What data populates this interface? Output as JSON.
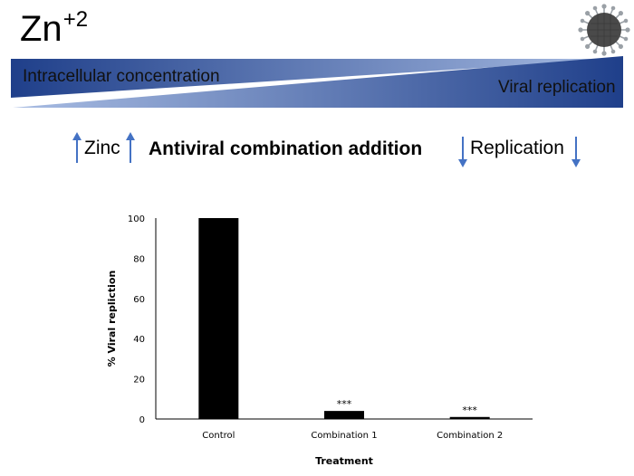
{
  "header": {
    "element": "Zn",
    "charge": "+2",
    "intracellular_label": "Intracellular concentration",
    "viral_label": "Viral replication",
    "zinc_label": "Zinc",
    "headline": "Antiviral combination addition",
    "replication_label": "Replication"
  },
  "colors": {
    "wedge_dark": "#1f3f8a",
    "wedge_light": "#a9bde3",
    "arrow": "#4472c4",
    "bar": "#000000"
  },
  "icons": [
    "up-arrow-icon",
    "down-arrow-icon",
    "virus-icon"
  ],
  "chart_data": {
    "type": "bar",
    "title": "",
    "xlabel": "Treatment",
    "ylabel": "% Viral repliction",
    "ylim": [
      0,
      100
    ],
    "yticks": [
      0,
      20,
      40,
      60,
      80,
      100
    ],
    "categories": [
      "Control",
      "Combination 1",
      "Combination 2"
    ],
    "values": [
      100,
      4,
      1
    ],
    "annotations": [
      "",
      "***",
      "***"
    ],
    "grid": false
  }
}
